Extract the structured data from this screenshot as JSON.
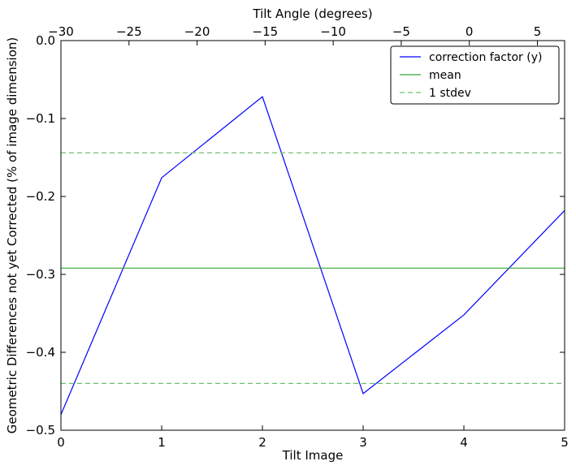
{
  "chart_data": {
    "type": "line",
    "title": "",
    "xlabel": "Tilt Image",
    "ylabel": "Geometric Differences not yet Corrected (% of image dimension)",
    "top_xlabel": "Tilt Angle (degrees)",
    "xlim": [
      0,
      5
    ],
    "ylim": [
      -0.5,
      0.0
    ],
    "top_xlim": [
      -30,
      7
    ],
    "x_ticks": [
      0,
      1,
      2,
      3,
      4,
      5
    ],
    "x_tick_labels": [
      "0",
      "1",
      "2",
      "3",
      "4",
      "5"
    ],
    "y_ticks": [
      0.0,
      -0.1,
      -0.2,
      -0.3,
      -0.4,
      -0.5
    ],
    "y_tick_labels": [
      "0.0",
      "−0.1",
      "−0.2",
      "−0.3",
      "−0.4",
      "−0.5"
    ],
    "top_x_ticks": [
      -30,
      -25,
      -20,
      -15,
      -10,
      -5,
      0,
      5
    ],
    "top_x_tick_labels": [
      "−30",
      "−25",
      "−20",
      "−15",
      "−10",
      "−5",
      "0",
      "5"
    ],
    "grid": false,
    "legend_position": "top-right",
    "series": [
      {
        "name": "correction factor (y)",
        "color": "#0000ff",
        "style": "solid",
        "x": [
          0,
          1,
          2,
          3,
          4,
          5
        ],
        "y": [
          -0.48,
          -0.176,
          -0.072,
          -0.453,
          -0.352,
          -0.218
        ]
      },
      {
        "name": "mean",
        "color": "#3aa63a",
        "style": "solid",
        "hline": -0.292
      },
      {
        "name": "1 stdev",
        "color": "#6cc06c",
        "style": "dashed",
        "hlines": [
          -0.144,
          -0.44
        ]
      }
    ]
  }
}
